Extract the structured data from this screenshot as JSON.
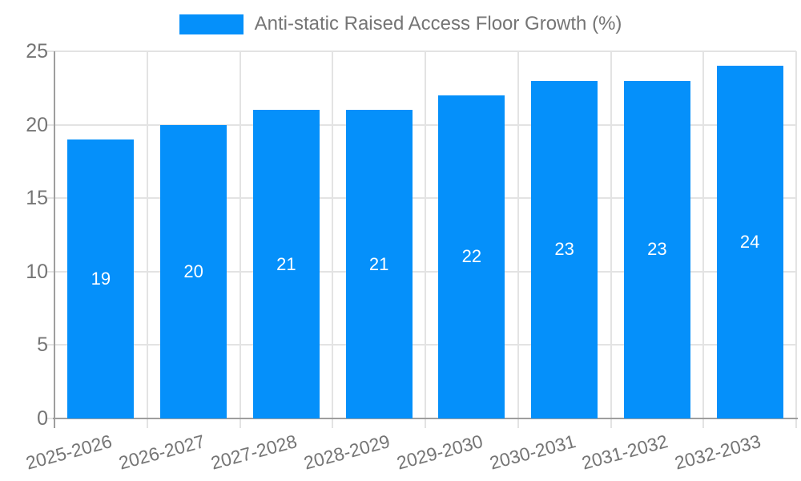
{
  "legend": {
    "label": "Anti-static Raised Access Floor Growth (%)"
  },
  "chart_data": {
    "type": "bar",
    "title": "Anti-static Raised Access Floor Growth (%)",
    "categories": [
      "2025-2026",
      "2026-2027",
      "2027-2028",
      "2028-2029",
      "2029-2030",
      "2030-2031",
      "2031-2032",
      "2032-2033"
    ],
    "values": [
      19,
      20,
      21,
      21,
      22,
      23,
      23,
      24
    ],
    "xlabel": "",
    "ylabel": "",
    "ylim": [
      0,
      25
    ],
    "yticks": [
      0,
      5,
      10,
      15,
      20,
      25
    ],
    "grid": true,
    "legend_position": "top",
    "value_labels_inside_bars": true,
    "colors": {
      "bar": "#0590fa",
      "grid": "#e3e3e3",
      "axis": "#9e9e9e",
      "text": "#757575",
      "value_label": "#ffffff",
      "background": "#ffffff"
    }
  }
}
